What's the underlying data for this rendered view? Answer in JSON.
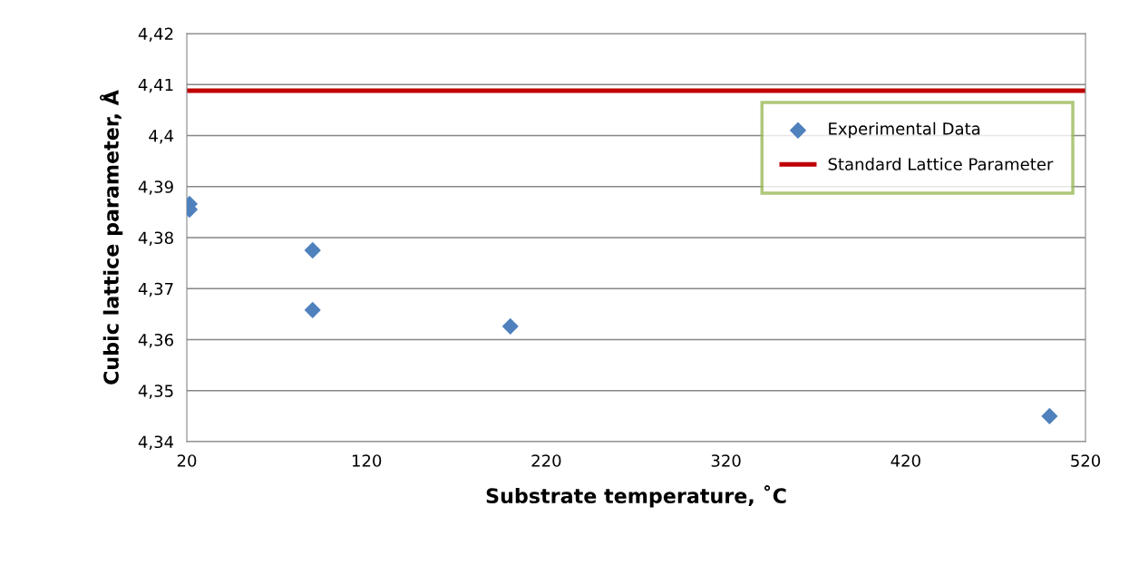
{
  "chart_data": {
    "type": "scatter",
    "xlabel": "Substrate temperature, ˚C",
    "ylabel": "Cubic lattice parameter, Å",
    "series": [
      {
        "name": "Experimental Data",
        "color": "#4f81bd",
        "marker": "diamond",
        "x": [
          21.5,
          21.5,
          90,
          90,
          200,
          500
        ],
        "values": [
          4.3866,
          4.3855,
          4.3775,
          4.3658,
          4.3626,
          4.345
        ]
      },
      {
        "name": "Standard Lattice Parameter",
        "type": "line",
        "color": "#c00000",
        "marker": "none",
        "x": [
          20,
          520
        ],
        "values": [
          4.4088,
          4.4088
        ]
      }
    ],
    "xlim": [
      20,
      520
    ],
    "xticks": [
      20,
      120,
      220,
      320,
      420,
      520
    ],
    "ylim": [
      4.34,
      4.42
    ],
    "yticks": [
      {
        "value": 4.34,
        "label": "4,34"
      },
      {
        "value": 4.35,
        "label": "4,35"
      },
      {
        "value": 4.36,
        "label": "4,36"
      },
      {
        "value": 4.37,
        "label": "4,37"
      },
      {
        "value": 4.38,
        "label": "4,38"
      },
      {
        "value": 4.39,
        "label": "4,39"
      },
      {
        "value": 4.4,
        "label": "4,4"
      },
      {
        "value": 4.41,
        "label": "4,41"
      },
      {
        "value": 4.42,
        "label": "4,42"
      }
    ],
    "grid": "y",
    "legend": "right"
  }
}
